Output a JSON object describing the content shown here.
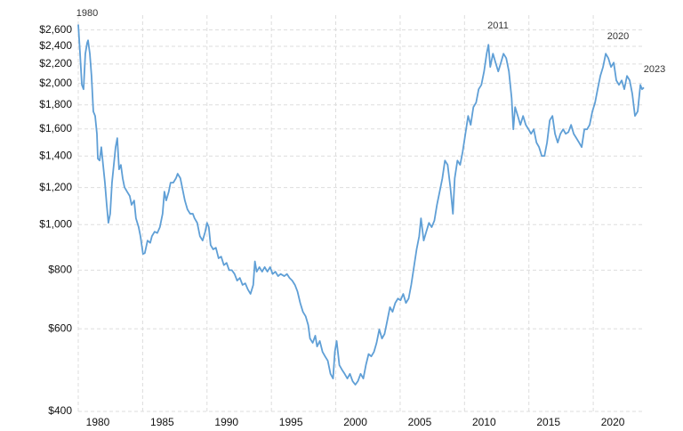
{
  "chart_data": {
    "type": "line",
    "log_scale": true,
    "grid": true,
    "color": "#5f9fd6",
    "annotations": [
      "1980",
      "2011",
      "2020",
      "2023"
    ],
    "xlim": [
      1980,
      2024
    ],
    "xticks": [
      1980,
      1985,
      1990,
      1995,
      2000,
      2005,
      2010,
      2015,
      2020
    ],
    "ylim": [
      400,
      2700
    ],
    "yticks": [
      {
        "value": 400,
        "label": "$400"
      },
      {
        "value": 600,
        "label": "$600"
      },
      {
        "value": 800,
        "label": "$800"
      },
      {
        "value": 1000,
        "label": "$1,000"
      },
      {
        "value": 1200,
        "label": "$1,200"
      },
      {
        "value": 1400,
        "label": "$1,400"
      },
      {
        "value": 1600,
        "label": "$1,600"
      },
      {
        "value": 1800,
        "label": "$1,800"
      },
      {
        "value": 2000,
        "label": "$2,000"
      },
      {
        "value": 2200,
        "label": "$2,200"
      },
      {
        "value": 2400,
        "label": "$2,400"
      },
      {
        "value": 2600,
        "label": "$2,600"
      }
    ],
    "x": [
      1980.0,
      1980.14,
      1980.28,
      1980.41,
      1980.55,
      1980.69,
      1980.76,
      1980.9,
      1981.03,
      1981.17,
      1981.31,
      1981.45,
      1981.52,
      1981.66,
      1981.79,
      1981.93,
      1982.07,
      1982.21,
      1982.34,
      1982.48,
      1982.62,
      1982.76,
      1982.9,
      1983.03,
      1983.17,
      1983.31,
      1983.45,
      1983.59,
      1983.79,
      1984.0,
      1984.14,
      1984.34,
      1984.48,
      1984.69,
      1984.83,
      1985.03,
      1985.17,
      1985.38,
      1985.59,
      1985.72,
      1985.93,
      1986.14,
      1986.34,
      1986.55,
      1986.69,
      1986.83,
      1987.03,
      1987.17,
      1987.38,
      1987.59,
      1987.72,
      1987.93,
      1988.07,
      1988.28,
      1988.48,
      1988.69,
      1988.9,
      1989.03,
      1989.24,
      1989.45,
      1989.66,
      1989.86,
      1990.0,
      1990.14,
      1990.28,
      1990.48,
      1990.69,
      1990.9,
      1991.1,
      1991.31,
      1991.52,
      1991.72,
      1991.93,
      1992.14,
      1992.34,
      1992.55,
      1992.76,
      1992.97,
      1993.17,
      1993.38,
      1993.59,
      1993.72,
      1993.86,
      1994.07,
      1994.28,
      1994.48,
      1994.69,
      1994.9,
      1995.1,
      1995.31,
      1995.52,
      1995.72,
      1996.0,
      1996.21,
      1996.41,
      1996.62,
      1996.83,
      1997.03,
      1997.24,
      1997.45,
      1997.66,
      1997.86,
      1998.0,
      1998.21,
      1998.41,
      1998.55,
      1998.76,
      1998.97,
      1999.17,
      1999.38,
      1999.59,
      1999.79,
      1999.93,
      2000.07,
      2000.28,
      2000.48,
      2000.69,
      2000.9,
      2001.1,
      2001.31,
      2001.52,
      2001.72,
      2001.93,
      2002.14,
      2002.34,
      2002.55,
      2002.76,
      2002.97,
      2003.17,
      2003.38,
      2003.59,
      2003.79,
      2004.0,
      2004.21,
      2004.41,
      2004.62,
      2004.83,
      2005.03,
      2005.24,
      2005.45,
      2005.66,
      2005.86,
      2006.07,
      2006.28,
      2006.48,
      2006.62,
      2006.83,
      2007.03,
      2007.24,
      2007.45,
      2007.66,
      2007.86,
      2008.07,
      2008.28,
      2008.48,
      2008.69,
      2008.9,
      2009.1,
      2009.24,
      2009.45,
      2009.66,
      2009.86,
      2010.07,
      2010.28,
      2010.48,
      2010.69,
      2010.9,
      2011.1,
      2011.31,
      2011.52,
      2011.72,
      2011.86,
      2012.0,
      2012.21,
      2012.41,
      2012.62,
      2012.83,
      2013.03,
      2013.24,
      2013.45,
      2013.66,
      2013.79,
      2013.93,
      2014.14,
      2014.34,
      2014.55,
      2014.76,
      2014.97,
      2015.17,
      2015.38,
      2015.59,
      2015.79,
      2016.0,
      2016.21,
      2016.41,
      2016.62,
      2016.83,
      2017.03,
      2017.24,
      2017.45,
      2017.66,
      2017.86,
      2018.07,
      2018.28,
      2018.48,
      2018.69,
      2018.9,
      2019.1,
      2019.31,
      2019.52,
      2019.72,
      2019.93,
      2020.14,
      2020.34,
      2020.55,
      2020.76,
      2020.97,
      2021.17,
      2021.38,
      2021.59,
      2021.79,
      2022.0,
      2022.21,
      2022.41,
      2022.62,
      2022.83,
      2023.03,
      2023.24,
      2023.45,
      2023.66,
      2023.79,
      2023.93
    ],
    "values": [
      2670,
      2314,
      1986,
      1944,
      2314,
      2440,
      2471,
      2314,
      2075,
      1743,
      1705,
      1562,
      1383,
      1370,
      1463,
      1341,
      1229,
      1102,
      1009,
      1055,
      1229,
      1341,
      1463,
      1529,
      1312,
      1341,
      1256,
      1202,
      1176,
      1151,
      1102,
      1126,
      1032,
      988,
      945,
      866,
      870,
      925,
      915,
      945,
      966,
      960,
      988,
      1055,
      1176,
      1126,
      1176,
      1229,
      1229,
      1256,
      1284,
      1256,
      1202,
      1126,
      1078,
      1055,
      1055,
      1032,
      1009,
      945,
      925,
      966,
      1009,
      988,
      905,
      886,
      893,
      848,
      855,
      820,
      829,
      800,
      800,
      785,
      760,
      770,
      744,
      750,
      728,
      712,
      744,
      835,
      794,
      812,
      794,
      812,
      794,
      812,
      785,
      794,
      777,
      785,
      777,
      785,
      770,
      760,
      744,
      720,
      681,
      652,
      638,
      611,
      572,
      560,
      580,
      550,
      565,
      536,
      524,
      513,
      481,
      470,
      536,
      565,
      502,
      491,
      481,
      470,
      481,
      464,
      456,
      464,
      481,
      470,
      502,
      530,
      524,
      536,
      560,
      598,
      572,
      585,
      624,
      667,
      652,
      681,
      696,
      690,
      712,
      681,
      696,
      744,
      812,
      886,
      945,
      1032,
      925,
      966,
      1009,
      988,
      1020,
      1102,
      1176,
      1256,
      1370,
      1341,
      1202,
      1055,
      1256,
      1370,
      1341,
      1432,
      1562,
      1705,
      1632,
      1781,
      1820,
      1944,
      1986,
      2121,
      2314,
      2418,
      2168,
      2314,
      2215,
      2121,
      2215,
      2314,
      2264,
      2121,
      1861,
      1597,
      1781,
      1705,
      1632,
      1705,
      1632,
      1597,
      1562,
      1597,
      1496,
      1463,
      1401,
      1401,
      1496,
      1668,
      1705,
      1562,
      1496,
      1562,
      1597,
      1562,
      1575,
      1632,
      1562,
      1529,
      1496,
      1463,
      1597,
      1597,
      1632,
      1743,
      1820,
      1944,
      2075,
      2168,
      2314,
      2264,
      2168,
      2215,
      2030,
      1986,
      2030,
      1944,
      2075,
      2030,
      1902,
      1705,
      1743,
      1986,
      1944,
      1960
    ]
  }
}
